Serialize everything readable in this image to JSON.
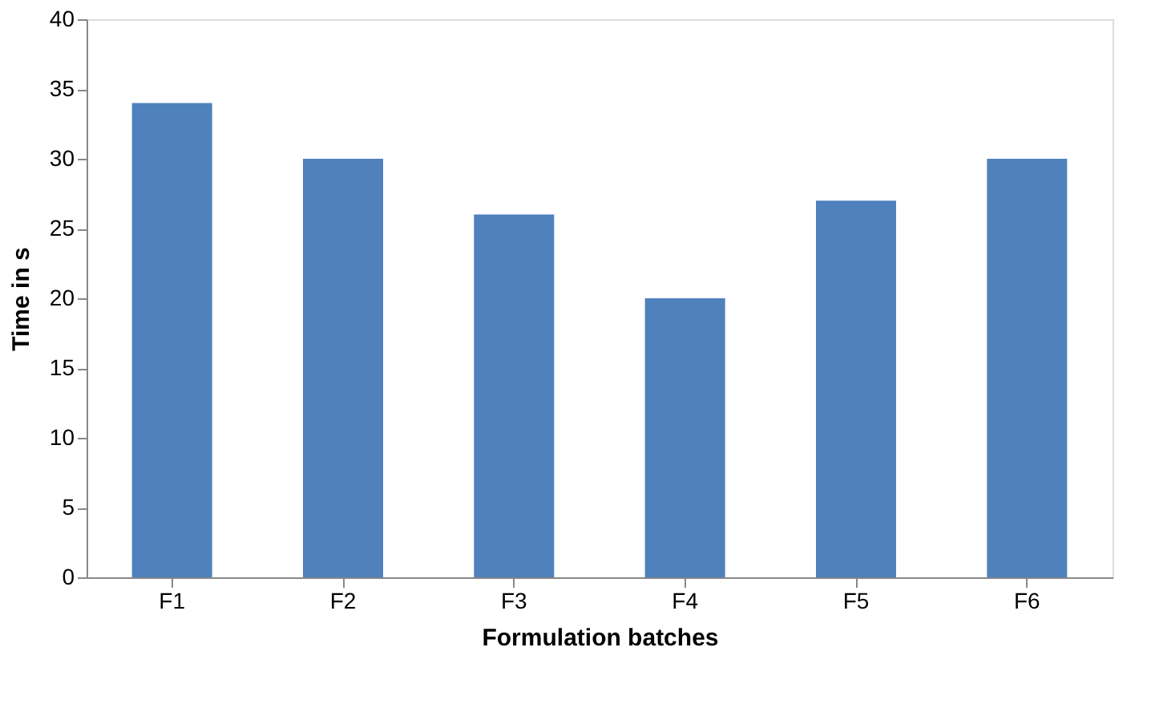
{
  "chart_data": {
    "type": "bar",
    "xlabel": "Formulation batches",
    "ylabel": "Time in s",
    "categories": [
      "F1",
      "F2",
      "F3",
      "F4",
      "F5",
      "F6"
    ],
    "values": [
      34,
      30,
      26,
      20,
      27,
      30
    ],
    "color": "#4f81bd",
    "ylim": [
      0,
      40
    ],
    "yticks": [
      0,
      5,
      10,
      15,
      20,
      25,
      30,
      35,
      40
    ],
    "grid": false
  }
}
